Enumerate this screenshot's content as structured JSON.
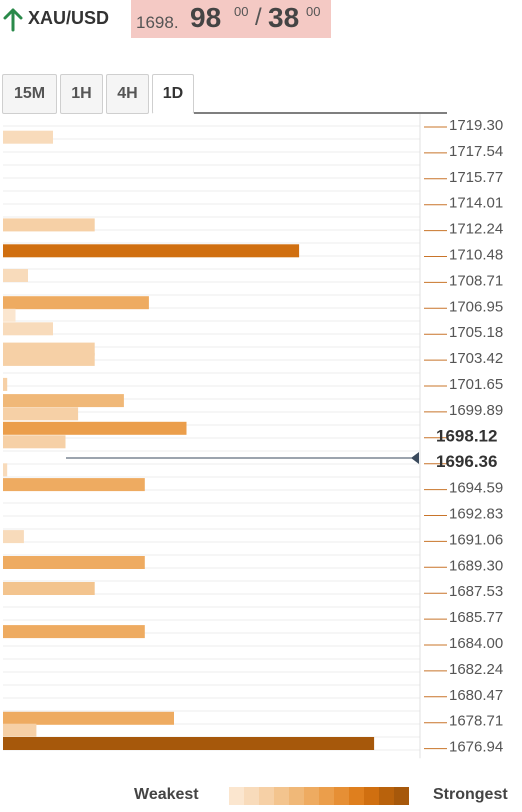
{
  "header": {
    "symbol": "XAU/USD",
    "bid_prefix": "1698.",
    "bid_main": "98",
    "bid_sup": "00",
    "separator": "/",
    "ask_main": "38",
    "ask_sup": "00",
    "direction_icon": "arrow-up-icon",
    "direction_color": "#2a8a4a"
  },
  "timeframes": {
    "items": [
      {
        "label": "15M",
        "active": false
      },
      {
        "label": "1H",
        "active": false
      },
      {
        "label": "4H",
        "active": false
      },
      {
        "label": "1D",
        "active": true
      }
    ]
  },
  "legend": {
    "weakest": "Weakest",
    "strongest": "Strongest",
    "colors": [
      "#fbe6cf",
      "#f8dbbb",
      "#f6d0a6",
      "#f3c48e",
      "#f0b878",
      "#eeab61",
      "#eb9e4b",
      "#e68f35",
      "#df7f1e",
      "#d06f10",
      "#b9620c",
      "#a6580b"
    ]
  },
  "chart_data": {
    "type": "bar",
    "orientation": "horizontal",
    "y_ticks": [
      "1719.30",
      "1717.54",
      "1715.77",
      "1714.01",
      "1712.24",
      "1710.48",
      "1708.71",
      "1706.95",
      "1705.18",
      "1703.42",
      "1701.65",
      "1699.89",
      "1698.12",
      "1696.36",
      "1694.59",
      "1692.83",
      "1691.06",
      "1689.30",
      "1687.53",
      "1685.77",
      "1684.00",
      "1682.24",
      "1680.47",
      "1678.71",
      "1676.94"
    ],
    "highlighted_ticks": [
      "1698.12",
      "1696.36"
    ],
    "current_price": 1696.4,
    "ylim": [
      1676.0,
      1720.2
    ],
    "bars": [
      {
        "price": 1718.2,
        "value": 12,
        "strength": 1
      },
      {
        "price": 1712.24,
        "value": 22,
        "strength": 2
      },
      {
        "price": 1710.48,
        "value": 71,
        "strength": 9
      },
      {
        "price": 1708.8,
        "value": 6,
        "strength": 1
      },
      {
        "price": 1706.95,
        "value": 35,
        "strength": 5
      },
      {
        "price": 1706.1,
        "value": 3,
        "strength": 0
      },
      {
        "price": 1705.18,
        "value": 12,
        "strength": 1
      },
      {
        "price": 1703.8,
        "value": 22,
        "strength": 2
      },
      {
        "price": 1703.1,
        "value": 22,
        "strength": 2
      },
      {
        "price": 1701.4,
        "value": 1,
        "strength": 2
      },
      {
        "price": 1700.3,
        "value": 29,
        "strength": 4
      },
      {
        "price": 1699.4,
        "value": 18,
        "strength": 2
      },
      {
        "price": 1698.42,
        "value": 44,
        "strength": 6
      },
      {
        "price": 1697.5,
        "value": 15,
        "strength": 2
      },
      {
        "price": 1695.6,
        "value": 1,
        "strength": 1
      },
      {
        "price": 1694.59,
        "value": 34,
        "strength": 5
      },
      {
        "price": 1691.06,
        "value": 5,
        "strength": 1
      },
      {
        "price": 1689.3,
        "value": 34,
        "strength": 5
      },
      {
        "price": 1687.53,
        "value": 22,
        "strength": 3
      },
      {
        "price": 1684.6,
        "value": 34,
        "strength": 5
      },
      {
        "price": 1678.71,
        "value": 41,
        "strength": 5
      },
      {
        "price": 1677.9,
        "value": 8,
        "strength": 2
      },
      {
        "price": 1677.0,
        "value": 89,
        "strength": 11
      }
    ]
  }
}
